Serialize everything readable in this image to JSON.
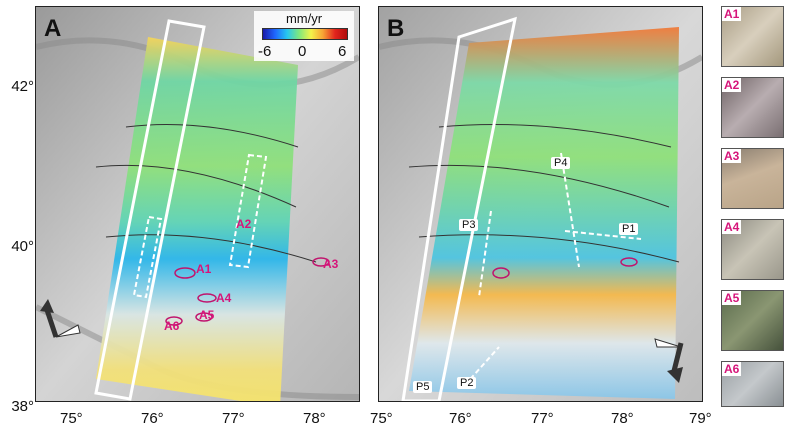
{
  "panels": [
    {
      "letter": "A"
    },
    {
      "letter": "B"
    }
  ],
  "colorbar": {
    "title": "mm/yr",
    "min": "-6",
    "mid": "0",
    "max": "6"
  },
  "panel_a": {
    "x_ticks": [
      "75°",
      "76°",
      "77°",
      "78°"
    ],
    "y_ticks": [
      "42°",
      "40°",
      "38°"
    ],
    "sites": [
      "A1",
      "A2",
      "A3",
      "A4",
      "A5",
      "A6"
    ]
  },
  "panel_b": {
    "x_ticks": [
      "75°",
      "76°",
      "77°",
      "78°",
      "79°"
    ],
    "profiles": [
      "P1",
      "P2",
      "P3",
      "P4",
      "P5"
    ]
  },
  "thumbnails": [
    "A1",
    "A2",
    "A3",
    "A4",
    "A5",
    "A6"
  ],
  "colors": {
    "site_label": "#d6157a",
    "colormap": [
      "#1a1aa8",
      "#1f66ff",
      "#26c6f0",
      "#7ee87e",
      "#f3f34a",
      "#f7a234",
      "#e2241d",
      "#b00c0c"
    ]
  }
}
